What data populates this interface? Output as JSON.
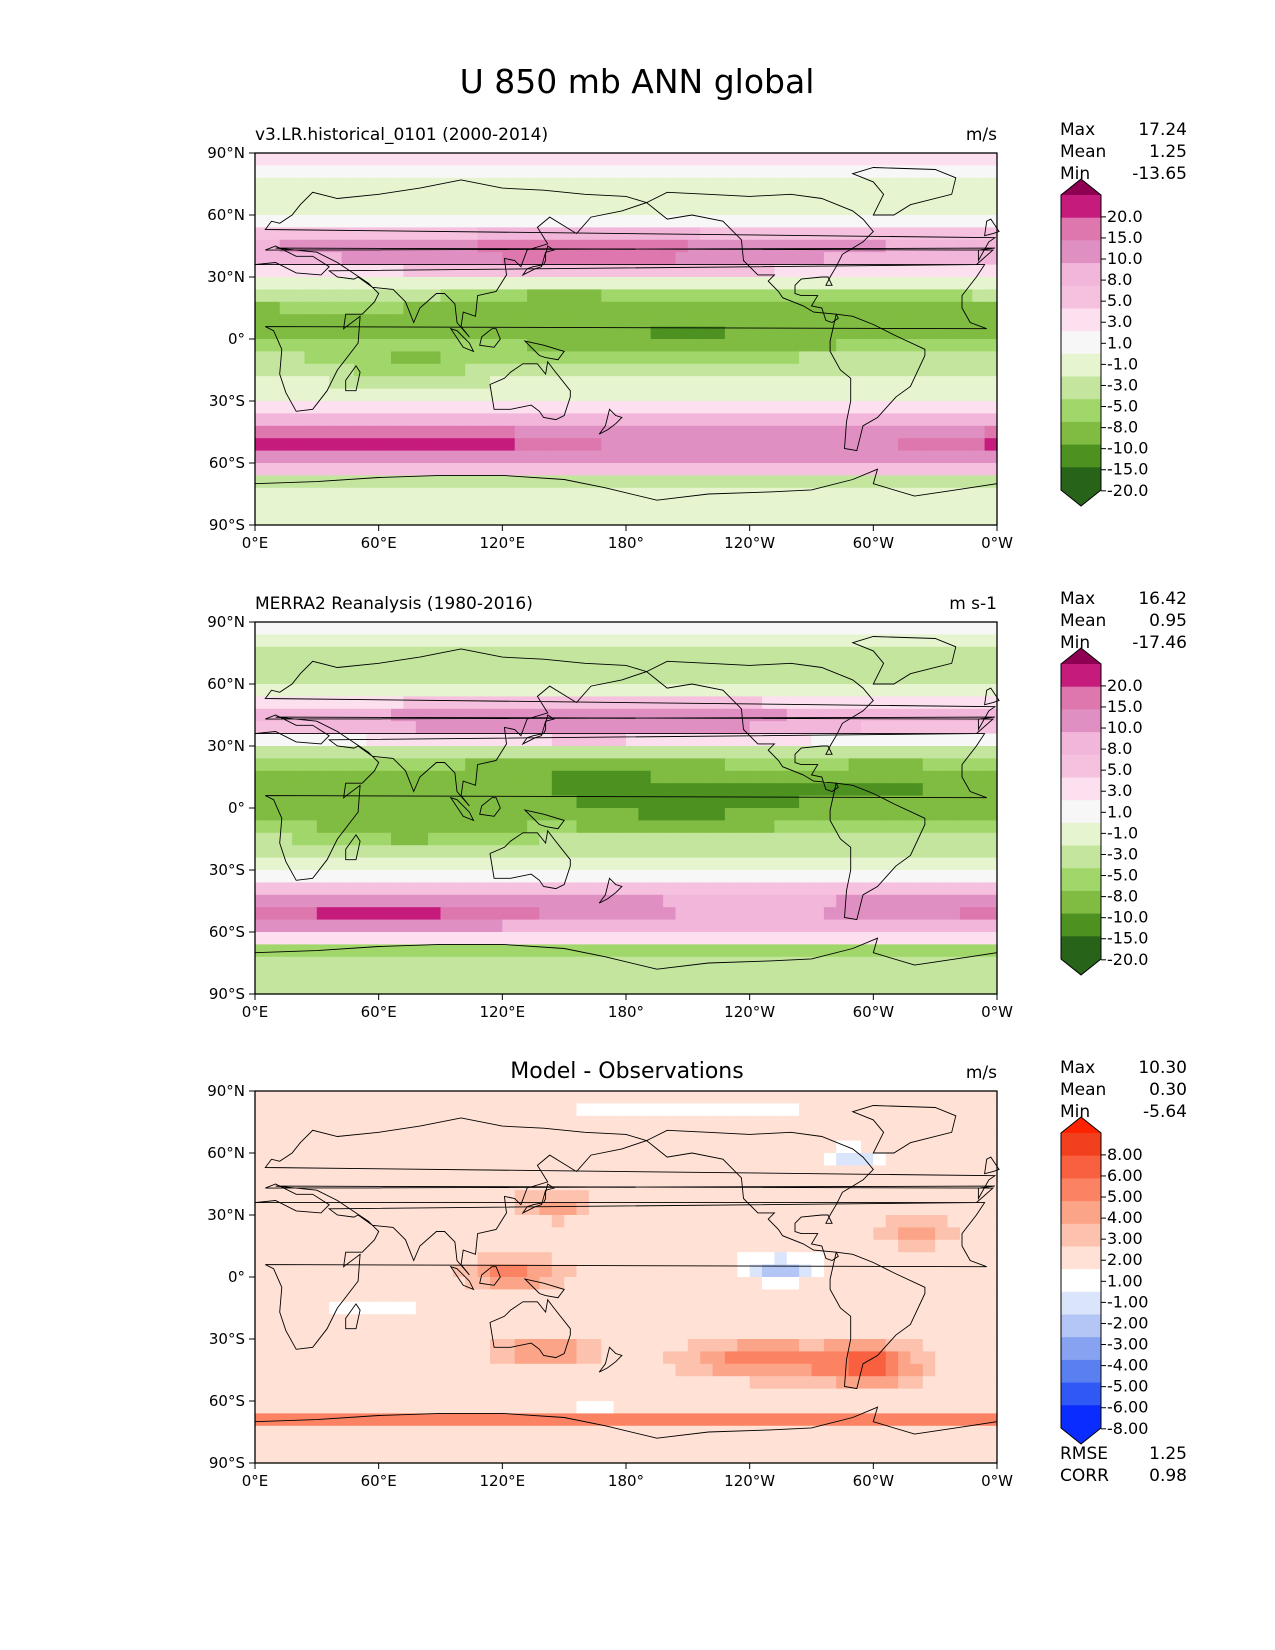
{
  "figure": {
    "title": "U 850 mb ANN global"
  },
  "colors": {
    "pg": [
      "#276419",
      "#4d9221",
      "#7fbc41",
      "#a1d76a",
      "#c4e59e",
      "#e6f5d0",
      "#f7f7f7",
      "#fde0ef",
      "#f6c1de",
      "#f1b6da",
      "#e08fc3",
      "#de77ae",
      "#c51b7d",
      "#8e0152"
    ],
    "diff": [
      "#0a2cff",
      "#2f58f5",
      "#5a7ff0",
      "#86a2f0",
      "#b3c6f5",
      "#dae4fb",
      "#ffffff",
      "#ffe1d6",
      "#fdc2ad",
      "#fca488",
      "#fb8363",
      "#f8603f",
      "#f2401e",
      "#ff2200"
    ],
    "land": "#000000"
  },
  "axes": {
    "xticks": [
      "0°E",
      "60°E",
      "120°E",
      "180°",
      "120°W",
      "60°W",
      "0°W"
    ],
    "yticks": [
      "90°N",
      "60°N",
      "30°N",
      "0°",
      "30°S",
      "60°S",
      "90°S"
    ]
  },
  "panels": [
    {
      "left_title": "v3.LR.historical_0101 (2000-2014)",
      "center_title": "",
      "units": "m/s",
      "stats": {
        "Max": "17.24",
        "Mean": "1.25",
        "Min": "-13.65"
      },
      "levels": [
        "20.0",
        "15.0",
        "10.0",
        "8.0",
        "5.0",
        "3.0",
        "1.0",
        "-1.0",
        "-3.0",
        "-5.0",
        "-8.0",
        "-10.0",
        "-15.0",
        "-20.0"
      ],
      "palette": "pg",
      "extra_stats": []
    },
    {
      "left_title": "MERRA2 Reanalysis (1980-2016)",
      "center_title": "",
      "units": "m s-1",
      "stats": {
        "Max": "16.42",
        "Mean": "0.95",
        "Min": "-17.46"
      },
      "levels": [
        "20.0",
        "15.0",
        "10.0",
        "8.0",
        "5.0",
        "3.0",
        "1.0",
        "-1.0",
        "-3.0",
        "-5.0",
        "-8.0",
        "-10.0",
        "-15.0",
        "-20.0"
      ],
      "palette": "pg",
      "extra_stats": []
    },
    {
      "left_title": "",
      "center_title": "Model - Observations",
      "units": "m/s",
      "stats": {
        "Max": "10.30",
        "Mean": "0.30",
        "Min": "-5.64"
      },
      "levels": [
        "8.00",
        "6.00",
        "5.00",
        "4.00",
        "3.00",
        "2.00",
        "1.00",
        "-1.00",
        "-2.00",
        "-3.00",
        "-4.00",
        "-5.00",
        "-6.00",
        "-8.00"
      ],
      "palette": "diff",
      "extra_stats": [
        {
          "label": "RMSE",
          "value": "1.25"
        },
        {
          "label": "CORR",
          "value": "0.98"
        }
      ]
    }
  ],
  "stat_labels": [
    "Max",
    "Mean",
    "Min"
  ]
}
